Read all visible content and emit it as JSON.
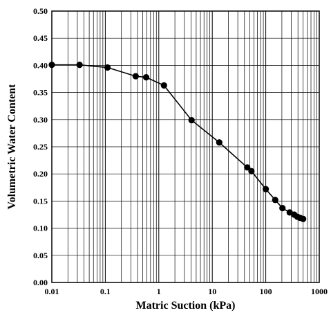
{
  "chart_data": {
    "type": "line",
    "title": "",
    "xlabel": "Matric Suction (kPa)",
    "ylabel": "Volumetric Water Content",
    "x_scale": "log",
    "xlim": [
      0.01,
      1000
    ],
    "ylim": [
      0.0,
      0.5
    ],
    "grid": true,
    "legend": "none",
    "x_tick_labels": [
      "0.01",
      "0.1",
      "1",
      "10",
      "100",
      "1000"
    ],
    "y_tick_labels": [
      "0.00",
      "0.05",
      "0.10",
      "0.15",
      "0.20",
      "0.25",
      "0.30",
      "0.35",
      "0.40",
      "0.45",
      "0.50"
    ],
    "series": [
      {
        "color": "#000000",
        "marker": "filled-circle",
        "x": [
          0.01,
          0.033,
          0.11,
          0.37,
          0.58,
          1.25,
          4.1,
          13.5,
          45,
          54,
          100,
          150,
          205,
          280,
          340,
          390,
          440,
          500
        ],
        "y": [
          0.401,
          0.401,
          0.396,
          0.38,
          0.378,
          0.363,
          0.299,
          0.258,
          0.212,
          0.205,
          0.172,
          0.152,
          0.137,
          0.129,
          0.125,
          0.121,
          0.119,
          0.117
        ]
      }
    ]
  }
}
